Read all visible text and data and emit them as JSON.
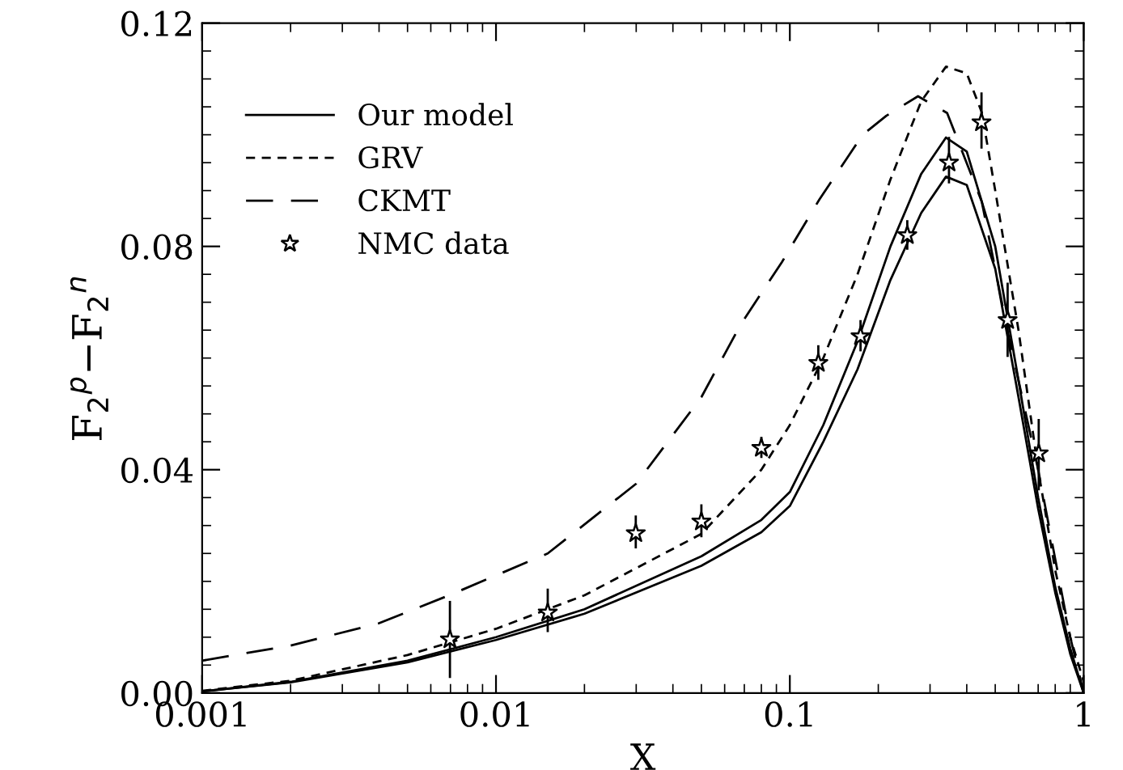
{
  "chart_data": {
    "type": "line",
    "xlabel": "X",
    "ylabel": "F$_{2}$$^{p}$−F$_{2}$$^{n}$",
    "log": "x",
    "xlim": [
      0.001,
      1
    ],
    "xticks": [
      0.001,
      0.01,
      0.1,
      1
    ],
    "ylim": [
      0,
      0.12
    ],
    "yticks": [
      {
        "value": 0,
        "label": "0.00"
      },
      0.04,
      0.08,
      0.12
    ],
    "legend": "top left",
    "grid": false,
    "series": [
      {
        "name": "Our model",
        "color": "#000000",
        "line_style": "solid",
        "x": [
          0.001,
          0.002,
          0.005,
          0.01,
          0.02,
          0.05,
          0.08,
          0.1,
          0.13,
          0.17,
          0.22,
          0.28,
          0.34,
          0.4,
          0.5,
          0.6,
          0.7,
          0.8,
          0.9,
          1.0
        ],
        "values": [
          0.0003,
          0.002,
          0.0058,
          0.01,
          0.015,
          0.0245,
          0.031,
          0.036,
          0.048,
          0.063,
          0.08,
          0.093,
          0.0995,
          0.097,
          0.08,
          0.056,
          0.035,
          0.019,
          0.008,
          0.0
        ]
      },
      {
        "color": "#000000",
        "line_style": "solid",
        "x": [
          0.001,
          0.002,
          0.005,
          0.01,
          0.02,
          0.05,
          0.08,
          0.1,
          0.13,
          0.17,
          0.22,
          0.28,
          0.34,
          0.4,
          0.5,
          0.6,
          0.7,
          0.8,
          0.9,
          1.0
        ],
        "values": [
          0.0003,
          0.0019,
          0.0055,
          0.0095,
          0.0142,
          0.0228,
          0.0288,
          0.0335,
          0.045,
          0.058,
          0.074,
          0.086,
          0.0925,
          0.091,
          0.076,
          0.053,
          0.033,
          0.018,
          0.007,
          0.0
        ]
      },
      {
        "name": "GRV",
        "color": "#000000",
        "line_style": "dashed",
        "x": [
          0.001,
          0.002,
          0.005,
          0.01,
          0.02,
          0.05,
          0.08,
          0.1,
          0.13,
          0.17,
          0.22,
          0.28,
          0.34,
          0.4,
          0.45,
          0.5,
          0.6,
          0.7,
          0.8,
          0.9,
          1.0
        ],
        "values": [
          0.0004,
          0.0022,
          0.0068,
          0.0115,
          0.0175,
          0.0285,
          0.04,
          0.048,
          0.06,
          0.075,
          0.092,
          0.106,
          0.1122,
          0.111,
          0.104,
          0.09,
          0.065,
          0.04,
          0.022,
          0.01,
          0.002
        ]
      },
      {
        "name": "CKMT",
        "color": "#000000",
        "line_style": "longdash",
        "x": [
          0.001,
          0.002,
          0.004,
          0.007,
          0.015,
          0.03,
          0.05,
          0.068,
          0.094,
          0.126,
          0.177,
          0.213,
          0.273,
          0.343,
          0.45,
          0.55,
          0.7,
          0.8,
          0.9,
          1.0
        ],
        "values": [
          0.0058,
          0.0085,
          0.0125,
          0.0176,
          0.025,
          0.0375,
          0.053,
          0.066,
          0.0772,
          0.0884,
          0.1,
          0.1034,
          0.1069,
          0.1039,
          0.088,
          0.065,
          0.04,
          0.024,
          0.01,
          0.0
        ]
      },
      {
        "name": "NMC data",
        "type": "scatter",
        "color": "#000000",
        "marker": "star",
        "x": [
          0.00697,
          0.015,
          0.0299,
          0.05,
          0.08,
          0.125,
          0.174,
          0.251,
          0.348,
          0.449,
          0.551,
          0.703
        ],
        "values": [
          0.0096,
          0.0144,
          0.0286,
          0.0307,
          0.0439,
          0.0591,
          0.0639,
          0.082,
          0.095,
          0.1022,
          0.0668,
          0.0429
        ],
        "errors": [
          [
            0.0027,
            0.0165
          ],
          [
            0.0109,
            0.0187
          ],
          [
            0.0259,
            0.0318
          ],
          [
            0.0279,
            0.0338
          ],
          [
            0.0421,
            0.0459
          ],
          [
            0.0561,
            0.0623
          ],
          [
            0.0612,
            0.0668
          ],
          [
            0.0794,
            0.0847
          ],
          [
            0.0913,
            0.0996
          ],
          [
            0.0975,
            0.1076
          ],
          [
            0.0602,
            0.0735
          ],
          [
            0.0363,
            0.0491
          ]
        ]
      }
    ]
  }
}
